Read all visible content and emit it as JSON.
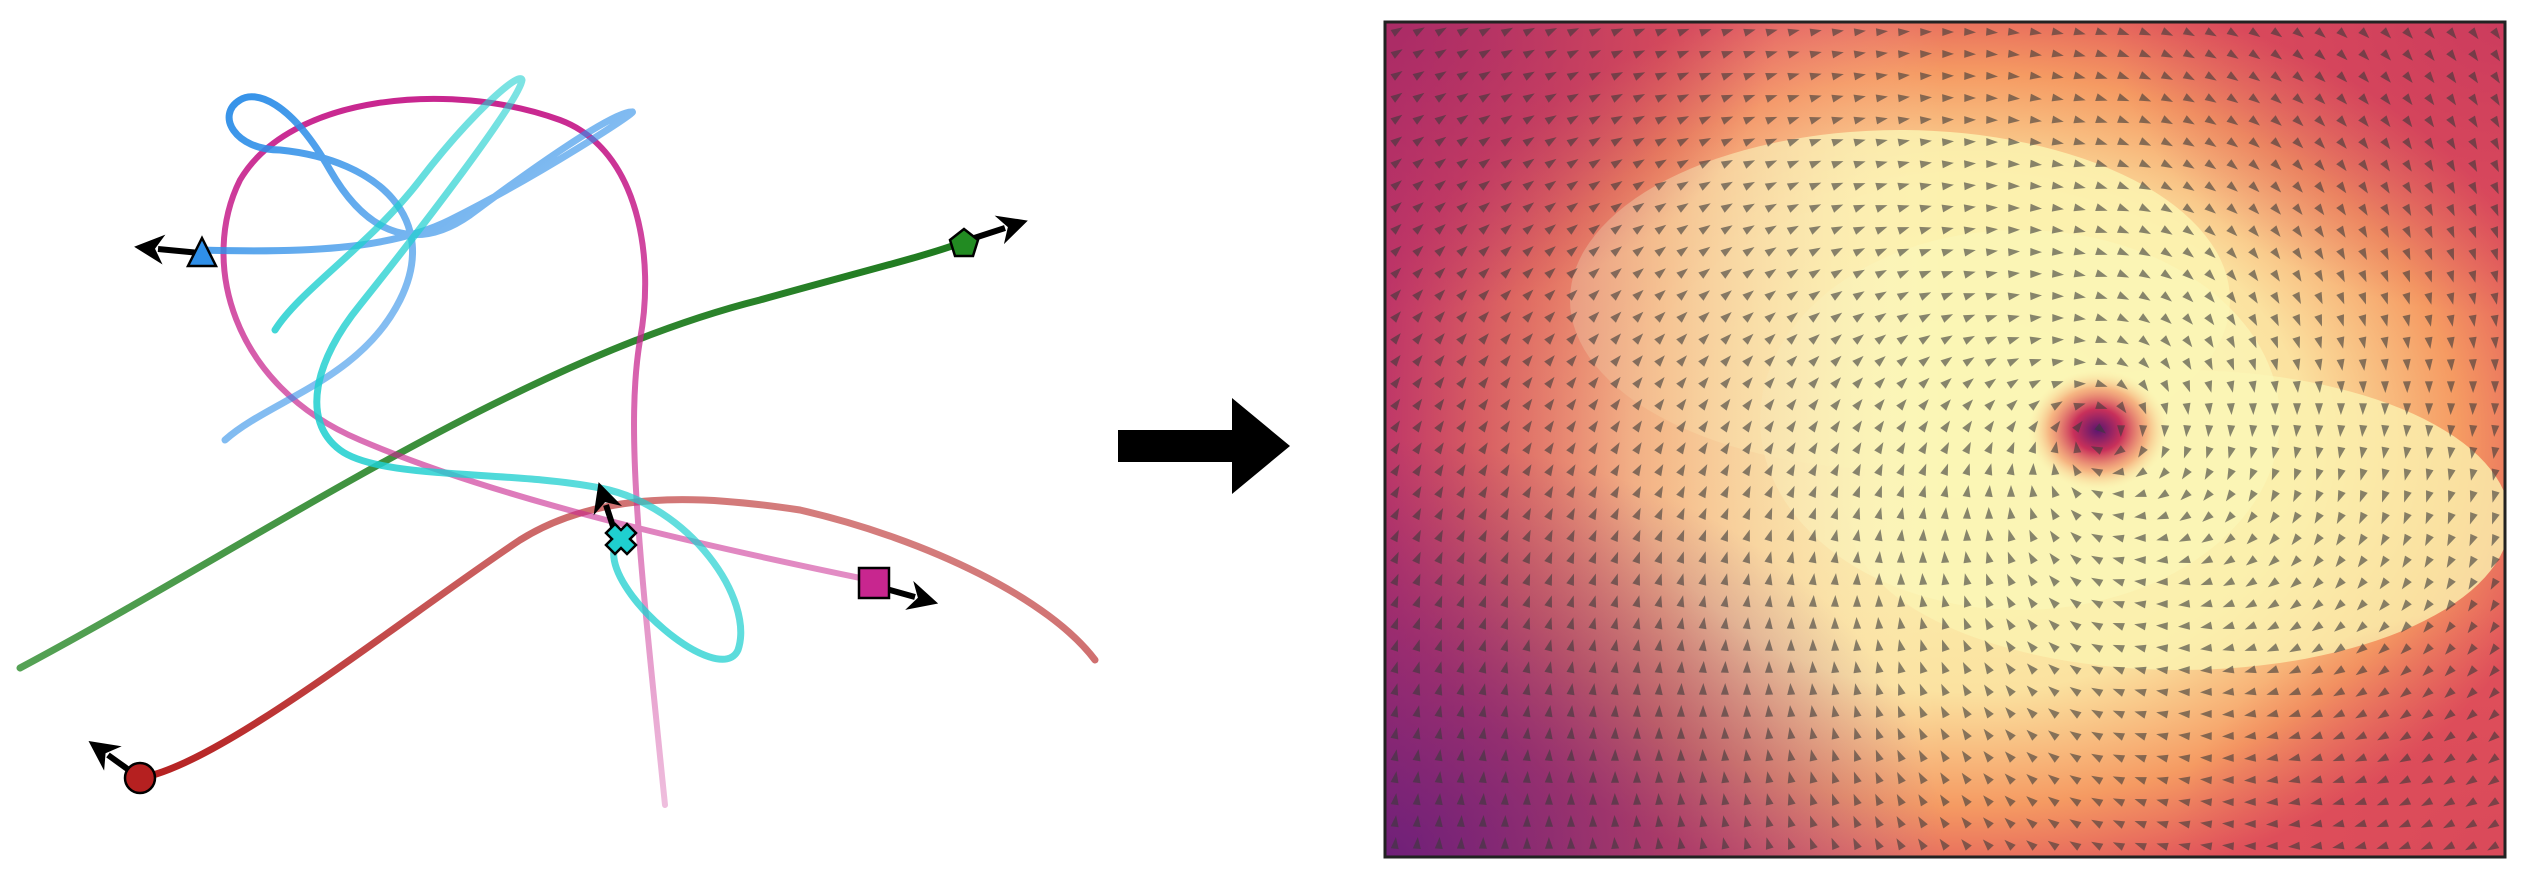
{
  "colors": {
    "green_track": "#2a8a2a",
    "blue_track": "#2f8fe8",
    "magenta_track": "#c8268f",
    "cyan_track": "#1fcfcf",
    "red_track": "#b52020",
    "arrow": "#000000",
    "field_low": "#6b1f7a",
    "field_mid": "#f06a4a",
    "field_high": "#fbf6b4",
    "frame": "#222222"
  },
  "trajectories": [
    {
      "id": "green",
      "marker": "pentagon"
    },
    {
      "id": "blue",
      "marker": "triangle"
    },
    {
      "id": "magenta",
      "marker": "square"
    },
    {
      "id": "cyan",
      "marker": "x-cross"
    },
    {
      "id": "red",
      "marker": "circle"
    }
  ],
  "transition": {
    "icon": "right-arrow-icon"
  },
  "vector_field": {
    "background": "colormap-magma-like",
    "icon": "velocity-arrow-icon"
  }
}
